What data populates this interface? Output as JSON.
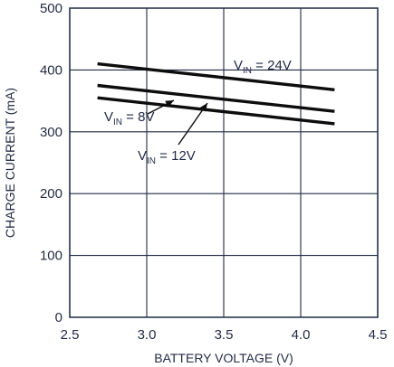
{
  "chart_data": {
    "type": "line",
    "xlabel": "BATTERY VOLTAGE (V)",
    "ylabel": "CHARGE CURRENT (mA)",
    "xlim": [
      2.5,
      4.5
    ],
    "ylim": [
      0,
      500
    ],
    "x_ticks": [
      "2.5",
      "3.0",
      "3.5",
      "4.0",
      "4.5"
    ],
    "y_ticks": [
      "0",
      "100",
      "200",
      "300",
      "400",
      "500"
    ],
    "grid": true,
    "series": [
      {
        "label": {
          "main": "V",
          "sub": "IN",
          "suffix": " = 24V"
        },
        "x": [
          2.68,
          4.22
        ],
        "y": [
          410,
          368
        ]
      },
      {
        "label": {
          "main": "V",
          "sub": "IN",
          "suffix": " = 8V"
        },
        "x": [
          2.68,
          4.22
        ],
        "y": [
          375,
          333
        ]
      },
      {
        "label": {
          "main": "V",
          "sub": "IN",
          "suffix": " = 12V"
        },
        "x": [
          2.68,
          4.22
        ],
        "y": [
          355,
          313
        ]
      }
    ]
  }
}
